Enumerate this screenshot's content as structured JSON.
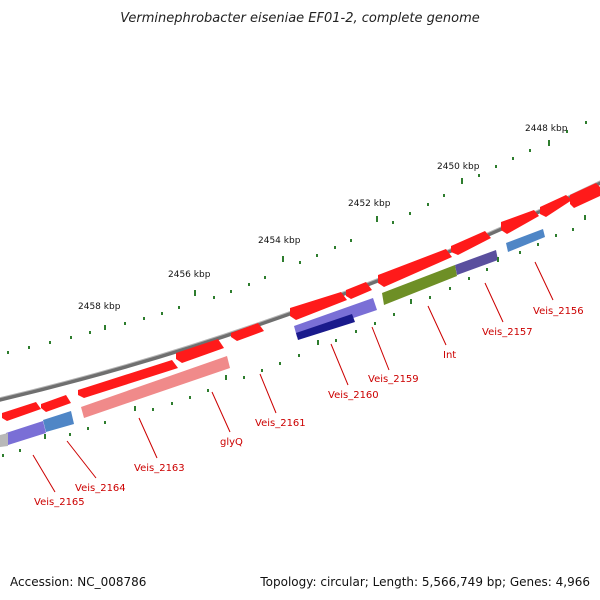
{
  "map": {
    "title": "Verminephrobacter eiseniae EF01-2, complete genome",
    "accession_text": "Accession: NC_008786",
    "summary_text": "Topology: circular; Length: 5,566,749 bp; Genes: 4,966"
  },
  "colors": {
    "backbone": "#6f6f6f",
    "tick": "#2e7d2e",
    "label": "#cc0000",
    "gene_red": "#ff1a1a",
    "pink_rrna": "#f08a8a",
    "purple": "#7a6fd6",
    "steel_blue": "#4f86c6",
    "dark_navy": "#1a1a8c",
    "olive": "#6e8f26",
    "slate_purple": "#5a4f9e",
    "grey": "#b8b8b8"
  },
  "ticks": [
    {
      "label": "2448 kbp"
    },
    {
      "label": "2450 kbp"
    },
    {
      "label": "2452 kbp"
    },
    {
      "label": "2454 kbp"
    },
    {
      "label": "2456 kbp"
    },
    {
      "label": "2458 kbp"
    }
  ],
  "gene_labels": [
    {
      "text": "Veis_2156"
    },
    {
      "text": "Veis_2157"
    },
    {
      "text": "Int"
    },
    {
      "text": "Veis_2159"
    },
    {
      "text": "Veis_2160"
    },
    {
      "text": "Veis_2161"
    },
    {
      "text": "glyQ"
    },
    {
      "text": "Veis_2163"
    },
    {
      "text": "Veis_2164"
    },
    {
      "text": "Veis_2165"
    }
  ]
}
